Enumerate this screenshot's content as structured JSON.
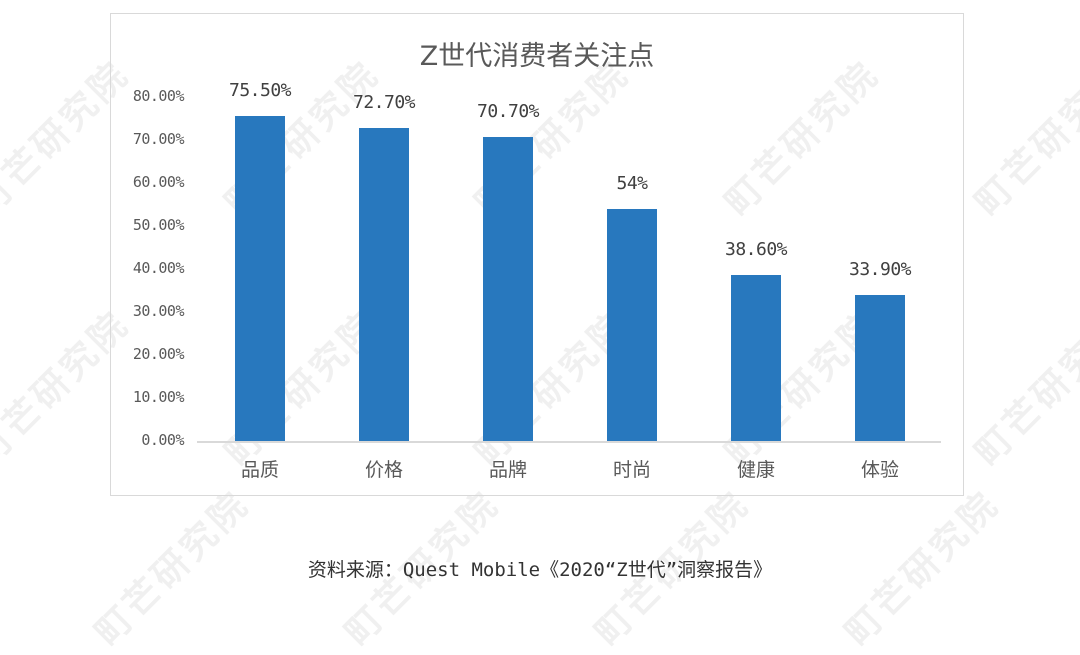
{
  "watermark": {
    "text": "町芒研究院"
  },
  "chart_data": {
    "type": "bar",
    "title": "Z世代消费者关注点",
    "categories": [
      "品质",
      "价格",
      "品牌",
      "时尚",
      "健康",
      "体验"
    ],
    "values": [
      75.5,
      72.7,
      70.7,
      54,
      38.6,
      33.9
    ],
    "data_labels": [
      "75.50%",
      "72.70%",
      "70.70%",
      "54%",
      "38.60%",
      "33.90%"
    ],
    "xlabel": "",
    "ylabel": "",
    "ylim": [
      0,
      80
    ],
    "y_ticks": [
      "0.00%",
      "10.00%",
      "20.00%",
      "30.00%",
      "40.00%",
      "50.00%",
      "60.00%",
      "70.00%",
      "80.00%"
    ],
    "grid": false,
    "legend": "none",
    "bar_color": "#2878be"
  },
  "source": {
    "text": "资料来源：Quest Mobile《2020“Z世代”洞察报告》"
  }
}
